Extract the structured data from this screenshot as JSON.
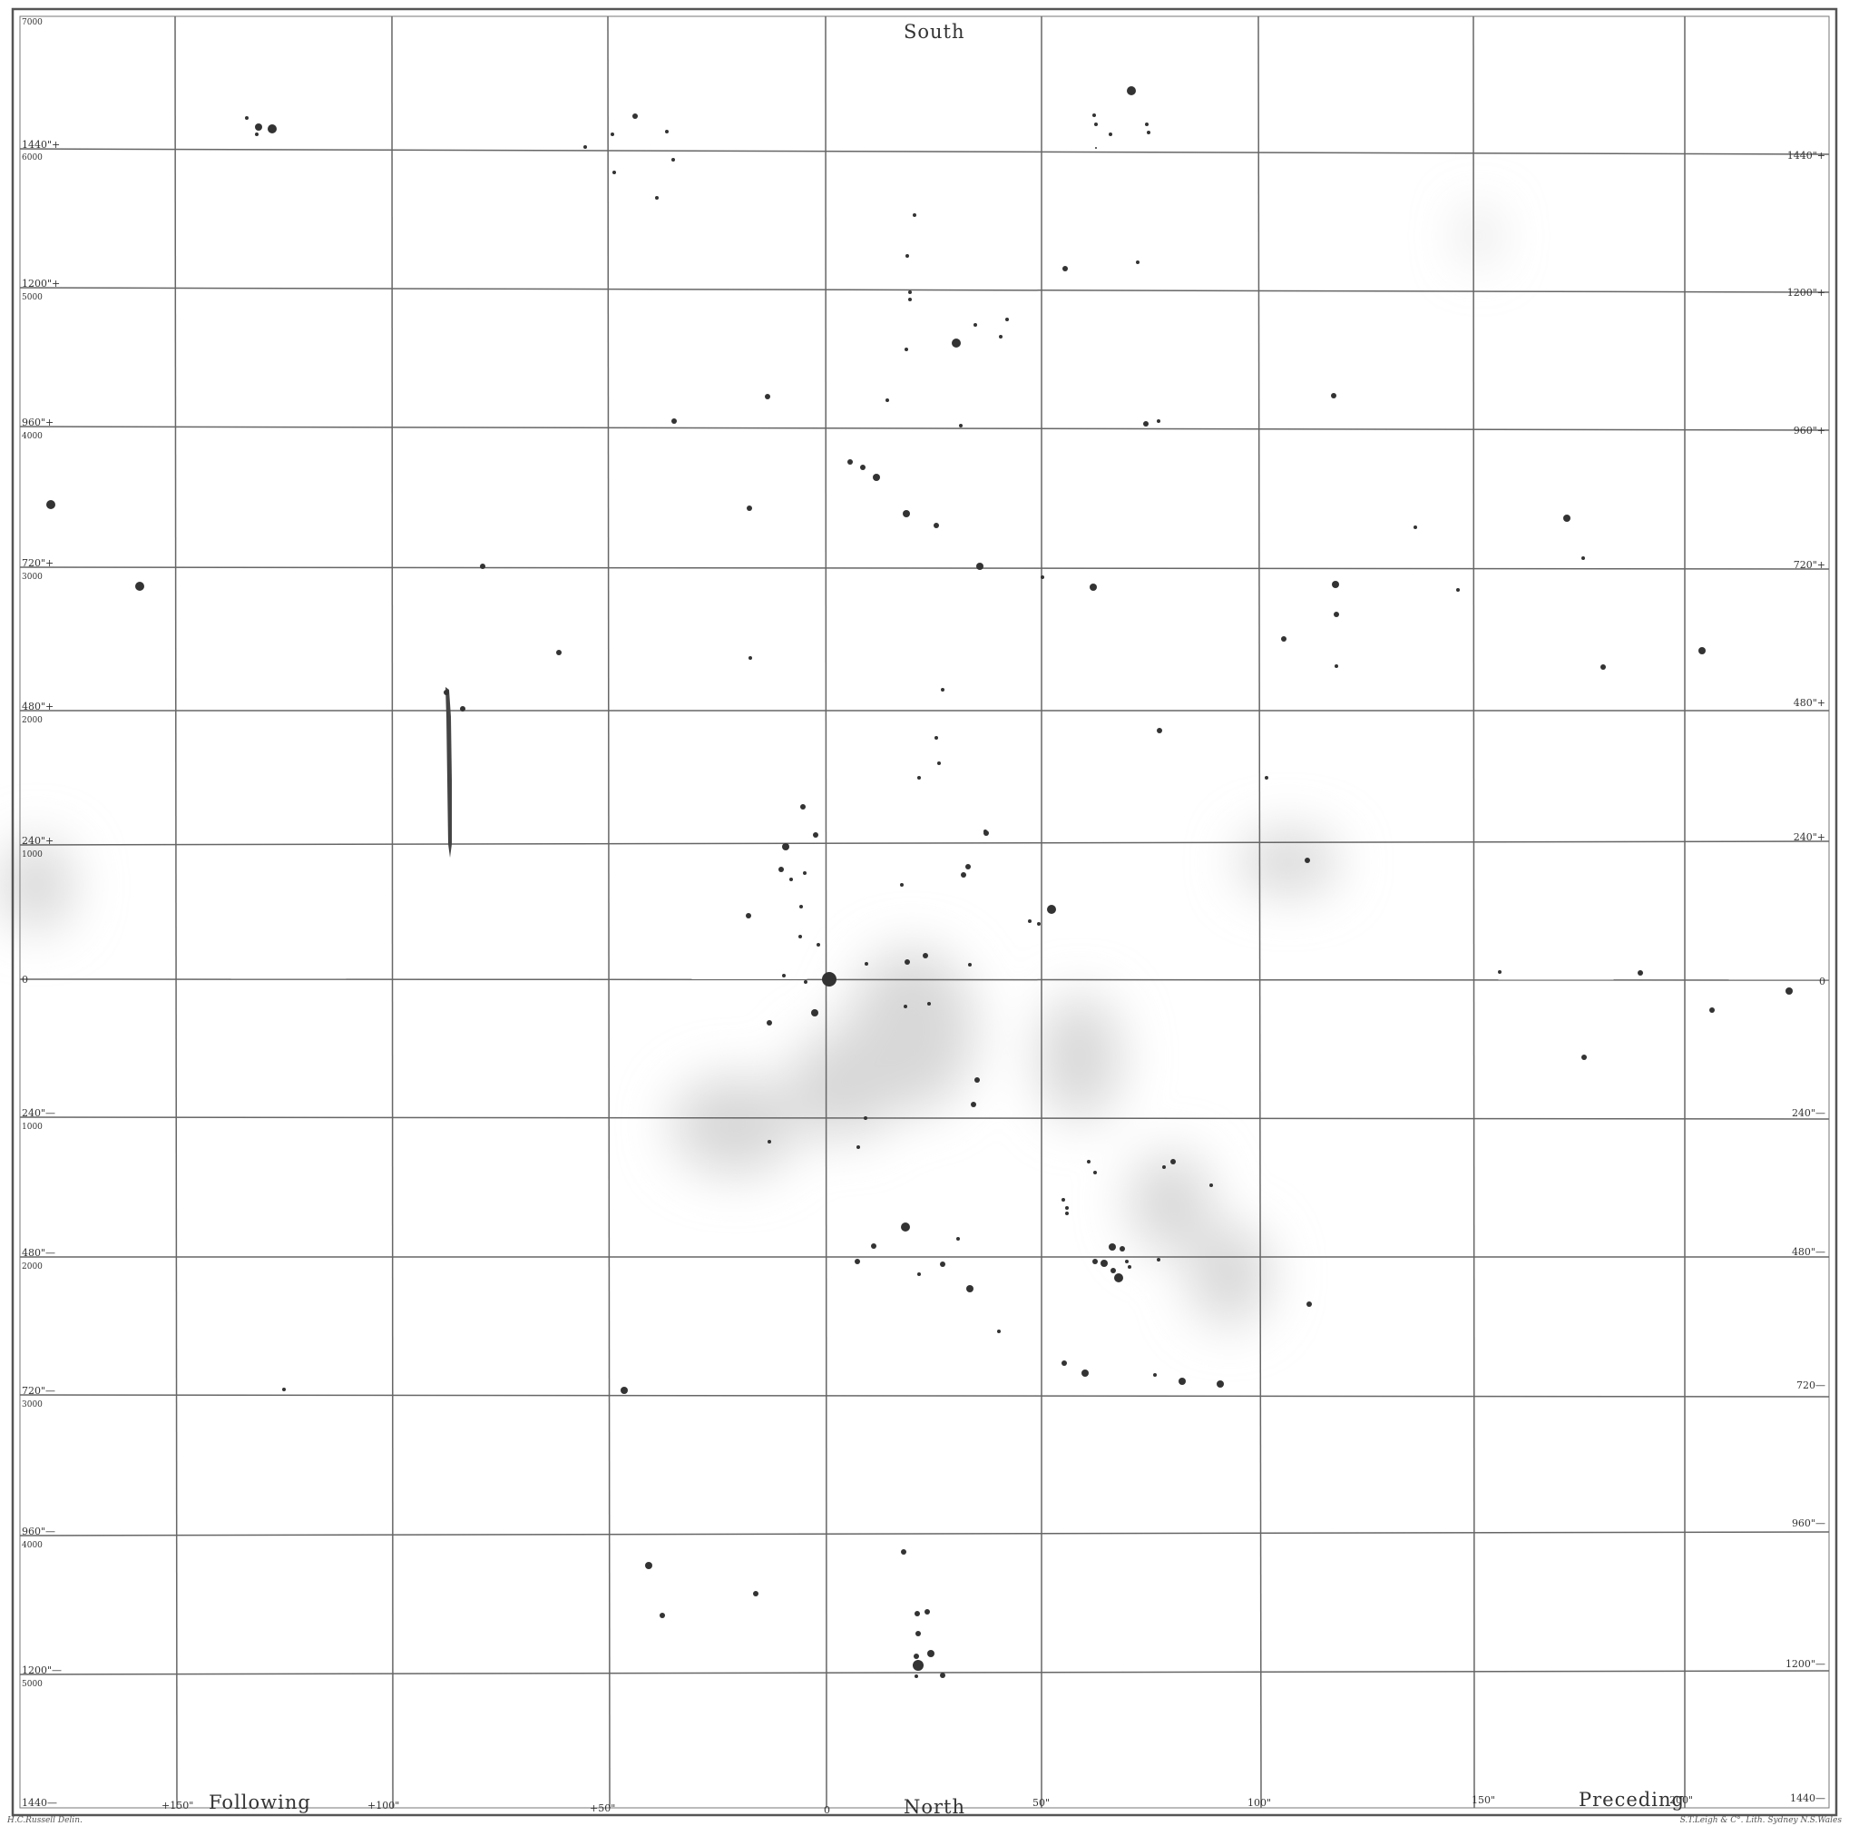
{
  "titles": {
    "south": "South",
    "north": "North",
    "following": "Following",
    "preceding": "Preceding"
  },
  "credits": {
    "left": "H.C.Russell Delin.",
    "right": "S.T.Leigh & C°. Lith. Sydney N.S.Wales"
  },
  "left_labels": [
    {
      "arc": "",
      "num": "7000"
    },
    {
      "arc": "1440\"+",
      "num": "6000"
    },
    {
      "arc": "1200\"+",
      "num": "5000"
    },
    {
      "arc": "960\"+",
      "num": "4000"
    },
    {
      "arc": "720\"+",
      "num": "3000"
    },
    {
      "arc": "480\"+",
      "num": "2000"
    },
    {
      "arc": "240\"+",
      "num": "1000"
    },
    {
      "arc": "0",
      "num": ""
    },
    {
      "arc": "240\"—",
      "num": "1000"
    },
    {
      "arc": "480\"—",
      "num": "2000"
    },
    {
      "arc": "720\"—",
      "num": "3000"
    },
    {
      "arc": "960\"—",
      "num": "4000"
    },
    {
      "arc": "1200\"—",
      "num": "5000"
    },
    {
      "arc": "1440—",
      "num": ""
    }
  ],
  "right_labels": [
    "1440\"+",
    "1200\"+",
    "960\"+",
    "720\"+",
    "480\"+",
    "240\"+",
    "0",
    "240\"—",
    "480\"—",
    "720—",
    "960\"—",
    "1200\"—",
    "1440—"
  ],
  "bottom_labels": [
    "+150\"",
    "+100\"",
    "+50\"",
    "0",
    "50\"",
    "100\"",
    "150\"",
    "200\""
  ],
  "stars": [
    [
      285,
      140,
      4
    ],
    [
      272,
      130,
      2
    ],
    [
      283,
      148,
      2
    ],
    [
      300,
      142,
      5
    ],
    [
      700,
      128,
      3
    ],
    [
      675,
      148,
      2
    ],
    [
      735,
      145,
      2
    ],
    [
      645,
      162,
      2
    ],
    [
      677,
      190,
      2
    ],
    [
      742,
      176,
      2
    ],
    [
      724,
      218,
      2
    ],
    [
      1247,
      100,
      5
    ],
    [
      1206,
      127,
      2
    ],
    [
      1224,
      148,
      2
    ],
    [
      1208,
      137,
      2
    ],
    [
      1264,
      137,
      2
    ],
    [
      1266,
      146,
      2
    ],
    [
      1208,
      163,
      1
    ],
    [
      1008,
      237,
      2
    ],
    [
      1000,
      282,
      2
    ],
    [
      1003,
      322,
      2
    ],
    [
      1003,
      330,
      2
    ],
    [
      1254,
      289,
      2
    ],
    [
      1174,
      296,
      3
    ],
    [
      1110,
      352,
      2
    ],
    [
      1075,
      358,
      2
    ],
    [
      1054,
      378,
      5
    ],
    [
      1103,
      371,
      2
    ],
    [
      999,
      385,
      2
    ],
    [
      978,
      441,
      2
    ],
    [
      846,
      437,
      3
    ],
    [
      743,
      464,
      3
    ],
    [
      1059,
      469,
      2
    ],
    [
      1263,
      467,
      3
    ],
    [
      1277,
      464,
      2
    ],
    [
      1470,
      436,
      3
    ],
    [
      56,
      556,
      5
    ],
    [
      154,
      646,
      5
    ],
    [
      532,
      624,
      3
    ],
    [
      937,
      509,
      3
    ],
    [
      951,
      515,
      3
    ],
    [
      966,
      526,
      4
    ],
    [
      999,
      566,
      4
    ],
    [
      1032,
      579,
      3
    ],
    [
      826,
      560,
      3
    ],
    [
      1080,
      624,
      4
    ],
    [
      1149,
      636,
      2
    ],
    [
      1205,
      647,
      4
    ],
    [
      1472,
      644,
      4
    ],
    [
      1560,
      581,
      2
    ],
    [
      1607,
      650,
      2
    ],
    [
      1727,
      571,
      4
    ],
    [
      1745,
      615,
      2
    ],
    [
      1415,
      704,
      3
    ],
    [
      1473,
      677,
      3
    ],
    [
      1473,
      734,
      2
    ],
    [
      616,
      719,
      3
    ],
    [
      827,
      725,
      2
    ],
    [
      492,
      763,
      3
    ],
    [
      510,
      781,
      3
    ],
    [
      1039,
      760,
      2
    ],
    [
      1032,
      813,
      2
    ],
    [
      1013,
      857,
      2
    ],
    [
      1278,
      805,
      3
    ],
    [
      1396,
      857,
      2
    ],
    [
      1035,
      841,
      2
    ],
    [
      885,
      889,
      3
    ],
    [
      899,
      920,
      3
    ],
    [
      1086,
      916,
      2
    ],
    [
      1441,
      948,
      3
    ],
    [
      1876,
      717,
      4
    ],
    [
      1767,
      735,
      3
    ],
    [
      866,
      933,
      4
    ],
    [
      861,
      958,
      3
    ],
    [
      872,
      969,
      2
    ],
    [
      887,
      962,
      2
    ],
    [
      883,
      999,
      2
    ],
    [
      825,
      1009,
      3
    ],
    [
      882,
      1032,
      2
    ],
    [
      902,
      1041,
      2
    ],
    [
      864,
      1075,
      2
    ],
    [
      888,
      1082,
      2
    ],
    [
      848,
      1127,
      3
    ],
    [
      914,
      1080,
      3
    ],
    [
      994,
      975,
      2
    ],
    [
      1067,
      955,
      3
    ],
    [
      1062,
      964,
      3
    ],
    [
      1087,
      918,
      3
    ],
    [
      1159,
      1002,
      5
    ],
    [
      1145,
      1018,
      2
    ],
    [
      1135,
      1015,
      2
    ],
    [
      1020,
      1053,
      3
    ],
    [
      1000,
      1060,
      3
    ],
    [
      1069,
      1063,
      2
    ],
    [
      1024,
      1106,
      2
    ],
    [
      914,
      1079,
      8
    ],
    [
      898,
      1116,
      4
    ],
    [
      955,
      1062,
      2
    ],
    [
      998,
      1109,
      2
    ],
    [
      1077,
      1190,
      3
    ],
    [
      1887,
      1113,
      3
    ],
    [
      1972,
      1092,
      4
    ],
    [
      1808,
      1072,
      3
    ],
    [
      1746,
      1165,
      3
    ],
    [
      1653,
      1071,
      2
    ],
    [
      1073,
      1217,
      3
    ],
    [
      954,
      1232,
      2
    ],
    [
      946,
      1264,
      2
    ],
    [
      848,
      1258,
      2
    ],
    [
      1200,
      1280,
      2
    ],
    [
      1207,
      1292,
      2
    ],
    [
      1172,
      1322,
      2
    ],
    [
      1176,
      1331,
      2
    ],
    [
      1293,
      1280,
      3
    ],
    [
      1283,
      1286,
      2
    ],
    [
      1335,
      1306,
      2
    ],
    [
      1176,
      1337,
      2
    ],
    [
      998,
      1352,
      5
    ],
    [
      963,
      1373,
      3
    ],
    [
      1056,
      1365,
      2
    ],
    [
      945,
      1390,
      3
    ],
    [
      1039,
      1393,
      3
    ],
    [
      1013,
      1404,
      2
    ],
    [
      1069,
      1420,
      4
    ],
    [
      1101,
      1467,
      2
    ],
    [
      1207,
      1390,
      3
    ],
    [
      1217,
      1392,
      4
    ],
    [
      1226,
      1374,
      4
    ],
    [
      1237,
      1376,
      3
    ],
    [
      1227,
      1400,
      3
    ],
    [
      1233,
      1408,
      5
    ],
    [
      1245,
      1396,
      2
    ],
    [
      1242,
      1390,
      2
    ],
    [
      1277,
      1388,
      2
    ],
    [
      1443,
      1437,
      3
    ],
    [
      1173,
      1502,
      3
    ],
    [
      1196,
      1513,
      4
    ],
    [
      1273,
      1515,
      2
    ],
    [
      1303,
      1522,
      4
    ],
    [
      1345,
      1525,
      4
    ],
    [
      688,
      1532,
      4
    ],
    [
      313,
      1531,
      2
    ],
    [
      715,
      1725,
      4
    ],
    [
      730,
      1780,
      3
    ],
    [
      833,
      1756,
      3
    ],
    [
      996,
      1710,
      3
    ],
    [
      1011,
      1778,
      3
    ],
    [
      1022,
      1776,
      3
    ],
    [
      1012,
      1800,
      3
    ],
    [
      1026,
      1822,
      4
    ],
    [
      1010,
      1825,
      3
    ],
    [
      1012,
      1835,
      6
    ],
    [
      1039,
      1846,
      3
    ],
    [
      1010,
      1847,
      2
    ]
  ]
}
